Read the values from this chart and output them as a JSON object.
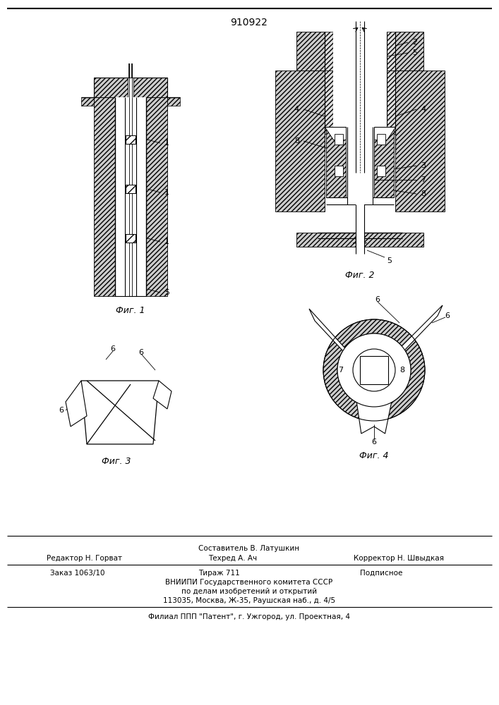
{
  "patent_number": "910922",
  "bg_color": "#ffffff",
  "fig_width": 7.07,
  "fig_height": 10.0,
  "footer": {
    "sostavitel": "Составитель В. Латушкин",
    "redaktor": "Редактор Н. Горват",
    "tehred": "Техред А. Ач",
    "korrektor": "Корректор Н. Швыдкая",
    "zakaz": "Заказ 1063/10",
    "tirazh": "Тираж 711",
    "podpisnoe": "Подписное",
    "vniip": "ВНИИПИ Государственного комитета СССР",
    "po_delam": "по делам изобретений и открытий",
    "address": "113035, Москва, Ж-35, Раушская наб., д. 4/5",
    "filial": "Филиал ППП \"Патент\", г. Ужгород, ул. Проектная, 4"
  },
  "fig_labels": {
    "fig1": "Фиг. 1",
    "fig2": "Фиг. 2",
    "fig3": "Фиг. 3",
    "fig4": "Фиг. 4"
  }
}
